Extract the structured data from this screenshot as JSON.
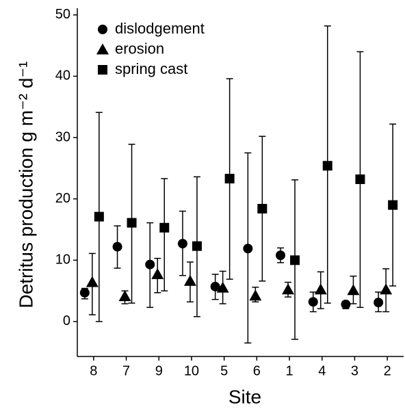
{
  "chart_data": {
    "type": "point-errorbar",
    "x_label": "Site",
    "y_label": "Detritus production g m⁻² d⁻¹",
    "categories": [
      "8",
      "7",
      "9",
      "10",
      "5",
      "6",
      "1",
      "4",
      "3",
      "2"
    ],
    "ylim": [
      -5.7,
      50.2
    ],
    "yticks": [
      0,
      10,
      20,
      30,
      40,
      50
    ],
    "legend": "top-left",
    "series": [
      {
        "name": "dislodgement",
        "marker": "circle",
        "color": "#000000",
        "values": [
          4.7,
          12.2,
          9.3,
          12.7,
          5.7,
          11.9,
          10.8,
          3.2,
          2.8,
          3.1
        ],
        "lower": [
          3.7,
          8.7,
          2.3,
          7.5,
          3.6,
          -3.5,
          9.6,
          1.6,
          2.1,
          1.6
        ],
        "upper": [
          5.4,
          15.6,
          16.1,
          18.0,
          7.7,
          27.5,
          12.0,
          4.8,
          3.3,
          4.8
        ]
      },
      {
        "name": "erosion",
        "marker": "triangle",
        "color": "#000000",
        "values": [
          6.4,
          4.1,
          7.7,
          6.6,
          5.5,
          4.2,
          5.2,
          5.2,
          5.1,
          5.2
        ],
        "lower": [
          1.1,
          2.9,
          4.7,
          3.2,
          2.9,
          3.2,
          4.0,
          2.1,
          2.9,
          1.6
        ],
        "upper": [
          11.1,
          5.0,
          10.3,
          9.7,
          8.2,
          5.6,
          6.4,
          8.1,
          7.4,
          8.6
        ]
      },
      {
        "name": "spring cast",
        "marker": "square",
        "color": "#000000",
        "values": [
          17.1,
          16.1,
          15.3,
          12.3,
          23.3,
          18.4,
          10.0,
          25.4,
          23.2,
          19.0
        ],
        "lower": [
          0.0,
          3.0,
          5.0,
          0.8,
          6.9,
          6.6,
          -2.9,
          3.0,
          2.3,
          5.8
        ],
        "upper": [
          34.1,
          28.9,
          23.3,
          23.6,
          39.6,
          30.2,
          23.1,
          48.2,
          44.0,
          32.2
        ]
      }
    ]
  }
}
